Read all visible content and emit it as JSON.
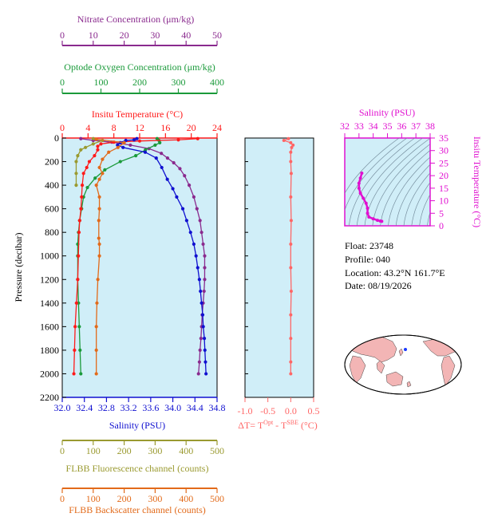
{
  "colors": {
    "nitrate": "#8a2a8e",
    "oxygen": "#1a9a3a",
    "temperature": "#ff1a1a",
    "salinity": "#1010d0",
    "fluorescence": "#9a9a30",
    "backscatter": "#e26a1a",
    "dt": "#ff6666",
    "ts": "#e010d0",
    "plot_bg": "#d0eef8",
    "land": "#f3b5b5",
    "ocean": "#ffffff"
  },
  "info": {
    "float": "Float:  23748",
    "profile": "Profile:  040",
    "location": "Location:  43.2°N  161.7°E",
    "date": "Date:  08/19/2026"
  },
  "chart_data": [
    {
      "type": "line",
      "name": "main_profile",
      "ylabel": "Pressure (decibar)",
      "ylim": [
        0,
        2200
      ],
      "yticks": [
        0,
        200,
        400,
        600,
        800,
        1000,
        1200,
        1400,
        1600,
        1800,
        2000,
        2200
      ],
      "y_inverted": true,
      "grid": false,
      "axes": {
        "nitrate": {
          "label": "Nitrate Concentration (μm/kg)",
          "range": [
            0,
            50
          ],
          "ticks": [
            0,
            10,
            20,
            30,
            40,
            50
          ]
        },
        "oxygen": {
          "label": "Optode Oxygen Concentration (μm/kg)",
          "range": [
            0,
            400
          ],
          "ticks": [
            0,
            100,
            200,
            300,
            400
          ]
        },
        "temperature": {
          "label": "Insitu Temperature (°C)",
          "range": [
            0,
            24
          ],
          "ticks": [
            0,
            4,
            8,
            12,
            16,
            20,
            24
          ]
        },
        "salinity": {
          "label": "Salinity (PSU)",
          "range": [
            32.0,
            34.8
          ],
          "ticks": [
            "32.0",
            "32.4",
            "32.8",
            "33.2",
            "33.6",
            "34.0",
            "34.4",
            "34.8"
          ]
        },
        "fluorescence": {
          "label": "FLBB Fluorescence channel (counts)",
          "range": [
            0,
            500
          ],
          "ticks": [
            0,
            100,
            200,
            300,
            400,
            500
          ]
        },
        "backscatter": {
          "label": "FLBB Backscatter channel (counts)",
          "range": [
            0,
            500
          ],
          "ticks": [
            0,
            100,
            200,
            300,
            400,
            500
          ]
        }
      },
      "series": [
        {
          "key": "nitrate",
          "axis": "nitrate",
          "points": [
            [
              6,
              5
            ],
            [
              10,
              20
            ],
            [
              16,
              35
            ],
            [
              22,
              60
            ],
            [
              28,
              90
            ],
            [
              32,
              130
            ],
            [
              34,
              170
            ],
            [
              36,
              210
            ],
            [
              38,
              260
            ],
            [
              39.5,
              320
            ],
            [
              41,
              400
            ],
            [
              42.5,
              500
            ],
            [
              43.5,
              600
            ],
            [
              44.5,
              700
            ],
            [
              45,
              800
            ],
            [
              45.5,
              900
            ],
            [
              46,
              1000
            ],
            [
              46,
              1100
            ],
            [
              46,
              1200
            ],
            [
              45.8,
              1300
            ],
            [
              45.5,
              1400
            ],
            [
              45.2,
              1500
            ],
            [
              45,
              1600
            ],
            [
              44.8,
              1700
            ],
            [
              44.5,
              1800
            ],
            [
              44.3,
              1900
            ],
            [
              44,
              2000
            ]
          ]
        },
        {
          "key": "oxygen",
          "axis": "oxygen",
          "points": [
            [
              245,
              5
            ],
            [
              250,
              20
            ],
            [
              252,
              40
            ],
            [
              240,
              60
            ],
            [
              215,
              100
            ],
            [
              190,
              150
            ],
            [
              150,
              200
            ],
            [
              110,
              270
            ],
            [
              85,
              340
            ],
            [
              65,
              420
            ],
            [
              55,
              500
            ],
            [
              50,
              600
            ],
            [
              45,
              700
            ],
            [
              42,
              800
            ],
            [
              40,
              900
            ],
            [
              40,
              1000
            ],
            [
              40,
              1200
            ],
            [
              42,
              1400
            ],
            [
              44,
              1600
            ],
            [
              46,
              1800
            ],
            [
              48,
              2000
            ]
          ]
        },
        {
          "key": "temperature",
          "axis": "temperature",
          "points": [
            [
              21,
              5
            ],
            [
              18,
              15
            ],
            [
              12,
              25
            ],
            [
              8,
              35
            ],
            [
              6,
              50
            ],
            [
              5.5,
              70
            ],
            [
              5.5,
              100
            ],
            [
              5,
              150
            ],
            [
              4.2,
              200
            ],
            [
              3.8,
              250
            ],
            [
              3.3,
              300
            ],
            [
              3.1,
              400
            ],
            [
              3,
              500
            ],
            [
              2.9,
              600
            ],
            [
              2.7,
              700
            ],
            [
              2.6,
              800
            ],
            [
              2.5,
              1000
            ],
            [
              2.4,
              1200
            ],
            [
              2.2,
              1400
            ],
            [
              2,
              1600
            ],
            [
              1.9,
              1800
            ],
            [
              1.8,
              2000
            ]
          ]
        },
        {
          "key": "salinity",
          "axis": "salinity",
          "points": [
            [
              33.35,
              5
            ],
            [
              33.3,
              15
            ],
            [
              33.15,
              20
            ],
            [
              33.05,
              40
            ],
            [
              33.0,
              60
            ],
            [
              33.1,
              80
            ],
            [
              33.5,
              120
            ],
            [
              33.7,
              170
            ],
            [
              33.8,
              250
            ],
            [
              33.9,
              350
            ],
            [
              34.0,
              430
            ],
            [
              34.07,
              500
            ],
            [
              34.18,
              600
            ],
            [
              34.25,
              700
            ],
            [
              34.32,
              800
            ],
            [
              34.38,
              900
            ],
            [
              34.42,
              1000
            ],
            [
              34.45,
              1100
            ],
            [
              34.48,
              1200
            ],
            [
              34.5,
              1300
            ],
            [
              34.52,
              1400
            ],
            [
              34.54,
              1500
            ],
            [
              34.55,
              1600
            ],
            [
              34.57,
              1700
            ],
            [
              34.58,
              1800
            ],
            [
              34.59,
              1900
            ],
            [
              34.6,
              2000
            ]
          ]
        },
        {
          "key": "fluorescence",
          "axis": "fluorescence",
          "points": [
            [
              100,
              5
            ],
            [
              130,
              20
            ],
            [
              100,
              50
            ],
            [
              75,
              80
            ],
            [
              60,
              100
            ],
            [
              50,
              150
            ],
            [
              45,
              200
            ],
            [
              45,
              300
            ],
            [
              45,
              400
            ]
          ]
        },
        {
          "key": "backscatter",
          "axis": "backscatter",
          "points": [
            [
              110,
              10
            ],
            [
              200,
              40
            ],
            [
              180,
              80
            ],
            [
              150,
              120
            ],
            [
              130,
              180
            ],
            [
              120,
              250
            ],
            [
              130,
              300
            ],
            [
              120,
              350
            ],
            [
              110,
              400
            ],
            [
              120,
              500
            ],
            [
              120,
              600
            ],
            [
              118,
              700
            ],
            [
              118,
              850
            ],
            [
              120,
              900
            ],
            [
              120,
              1000
            ],
            [
              115,
              1200
            ],
            [
              112,
              1400
            ],
            [
              110,
              1600
            ],
            [
              110,
              1800
            ],
            [
              110,
              2000
            ]
          ]
        }
      ]
    },
    {
      "type": "line",
      "name": "delta_t",
      "xlabel": "ΔT= T",
      "xlabel_sup1": "Opt",
      "xlabel_mid": " - T",
      "xlabel_sup2": "SBE",
      "xlabel_end": " (°C)",
      "xlim": [
        -1.0,
        0.5
      ],
      "xticks": [
        "-1.0",
        "-0.5",
        "0.0",
        "0.5"
      ],
      "ylim": [
        0,
        2200
      ],
      "points": [
        [
          -0.05,
          5
        ],
        [
          -0.15,
          20
        ],
        [
          0.0,
          40
        ],
        [
          0.05,
          60
        ],
        [
          0.02,
          80
        ],
        [
          0.0,
          120
        ],
        [
          0.0,
          200
        ],
        [
          0.01,
          300
        ],
        [
          0.0,
          500
        ],
        [
          0.01,
          700
        ],
        [
          0.0,
          900
        ],
        [
          0.0,
          1100
        ],
        [
          0.01,
          1300
        ],
        [
          0.0,
          1500
        ],
        [
          0.0,
          1700
        ],
        [
          0.0,
          1900
        ],
        [
          0.0,
          2000
        ]
      ]
    },
    {
      "type": "scatter",
      "name": "ts_diagram",
      "xlabel": "Salinity (PSU)",
      "xlim": [
        32,
        38
      ],
      "xticks": [
        32,
        33,
        34,
        35,
        36,
        37,
        38
      ],
      "ylabel": "Insitu Temperature (°C)",
      "ylim": [
        0,
        35
      ],
      "yticks": [
        0,
        5,
        10,
        15,
        20,
        25,
        30,
        35
      ],
      "points": [
        [
          33.2,
          21
        ],
        [
          33.1,
          19
        ],
        [
          33.0,
          17
        ],
        [
          33.0,
          15
        ],
        [
          33.1,
          13
        ],
        [
          33.3,
          11
        ],
        [
          33.5,
          9
        ],
        [
          33.6,
          7
        ],
        [
          33.6,
          5
        ],
        [
          33.7,
          3.5
        ],
        [
          34.0,
          2.8
        ],
        [
          34.3,
          2.2
        ],
        [
          34.5,
          1.9
        ],
        [
          34.6,
          1.8
        ]
      ]
    }
  ]
}
